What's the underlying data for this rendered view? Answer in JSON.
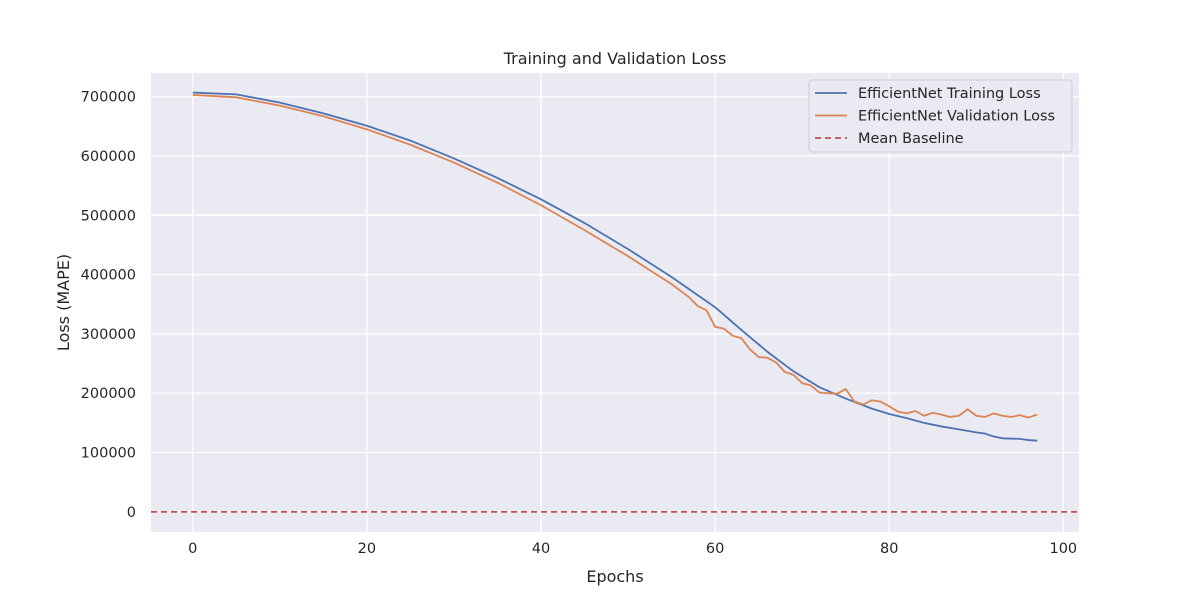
{
  "chart_data": {
    "type": "line",
    "title": "Training and Validation Loss",
    "xlabel": "Epochs",
    "ylabel": "Loss (MAPE)",
    "xlim": [
      -4.8,
      101.8
    ],
    "ylim": [
      -34000,
      740000
    ],
    "xticks": [
      0,
      20,
      40,
      60,
      80,
      100
    ],
    "yticks": [
      0,
      100000,
      200000,
      300000,
      400000,
      500000,
      600000,
      700000
    ],
    "grid": true,
    "legend_position": "top-right",
    "colors": {
      "background": "#eaeaf2",
      "grid": "#ffffff",
      "training": "#4c72b0",
      "validation": "#dd8452",
      "baseline": "#c44e52"
    },
    "series": [
      {
        "name": "EfficientNet Training Loss",
        "style": "solid",
        "x": [
          0,
          5,
          10,
          15,
          20,
          25,
          30,
          35,
          40,
          45,
          50,
          55,
          60,
          63,
          66,
          69,
          72,
          75,
          78,
          80,
          82,
          84,
          86,
          88,
          90,
          91,
          92,
          93,
          95,
          96,
          97
        ],
        "y": [
          707000,
          704000,
          690000,
          672000,
          651000,
          626000,
          596000,
          563000,
          527000,
          487000,
          443000,
          396000,
          345000,
          307000,
          270000,
          237000,
          210000,
          191000,
          174000,
          165000,
          158000,
          150000,
          144000,
          139000,
          134000,
          132000,
          127000,
          124000,
          123000,
          121000,
          120000
        ]
      },
      {
        "name": "EfficientNet Validation Loss",
        "style": "solid",
        "x": [
          0,
          5,
          10,
          15,
          20,
          25,
          30,
          35,
          40,
          45,
          50,
          55,
          57,
          58,
          59,
          60,
          61,
          62,
          63,
          64,
          65,
          66,
          67,
          68,
          69,
          70,
          71,
          72,
          73,
          74,
          75,
          76,
          77,
          78,
          79,
          80,
          81,
          82,
          83,
          84,
          85,
          86,
          87,
          88,
          89,
          90,
          91,
          92,
          93,
          94,
          95,
          96,
          97
        ],
        "y": [
          703000,
          699000,
          685000,
          667000,
          645000,
          619000,
          589000,
          555000,
          517000,
          475000,
          431000,
          384000,
          362000,
          347000,
          340000,
          312000,
          309000,
          297000,
          293000,
          274000,
          261000,
          260000,
          252000,
          236000,
          231000,
          217000,
          213000,
          201000,
          200000,
          199000,
          207000,
          186000,
          181000,
          188000,
          186000,
          178000,
          169000,
          166000,
          170000,
          162000,
          167000,
          164000,
          160000,
          162000,
          173000,
          162000,
          160000,
          166000,
          162000,
          160000,
          163000,
          159000,
          164000
        ]
      },
      {
        "name": "Mean Baseline",
        "style": "dashed",
        "x": [
          -4.8,
          101.8
        ],
        "y": [
          0,
          0
        ]
      }
    ]
  }
}
